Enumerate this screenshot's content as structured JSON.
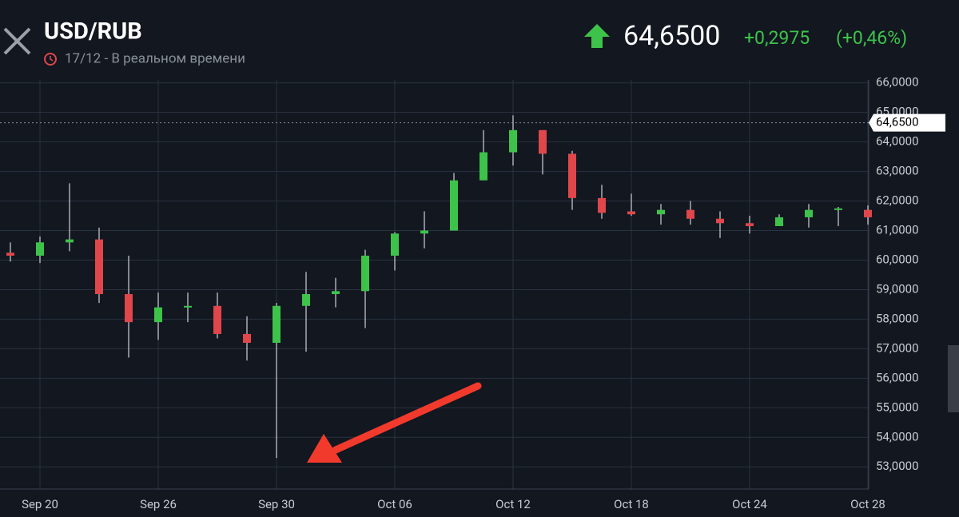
{
  "header": {
    "symbol": "USD/RUB",
    "subtitle": "17/12 - В реальном времени",
    "price": "64,6500",
    "change": "+0,2975",
    "change_percent": "(+0,46%)"
  },
  "chart_data": {
    "type": "candlestick",
    "categories": [
      null,
      "Sep 20",
      null,
      null,
      null,
      "Sep 26",
      null,
      null,
      null,
      "Sep 30",
      null,
      null,
      null,
      "Oct 06",
      null,
      null,
      null,
      "Oct 12",
      null,
      null,
      null,
      "Oct 18",
      null,
      null,
      null,
      "Oct 24",
      null,
      null,
      null,
      "Oct 28"
    ],
    "open": [
      60.25,
      60.15,
      60.6,
      60.7,
      58.85,
      57.9,
      58.4,
      58.45,
      57.5,
      57.2,
      58.45,
      58.85,
      58.95,
      60.15,
      60.9,
      61.0,
      62.7,
      63.65,
      64.4,
      63.6,
      62.1,
      61.65,
      61.55,
      61.7,
      61.4,
      61.25,
      61.15,
      61.45,
      61.7,
      61.7
    ],
    "high": [
      60.6,
      60.8,
      62.6,
      61.1,
      60.15,
      58.9,
      58.9,
      58.9,
      58.1,
      58.55,
      59.6,
      59.4,
      60.35,
      60.95,
      61.65,
      62.95,
      64.4,
      64.9,
      64.4,
      63.7,
      62.55,
      62.25,
      61.9,
      62.0,
      61.65,
      61.5,
      61.55,
      61.9,
      61.8,
      61.85
    ],
    "low": [
      59.95,
      59.9,
      60.3,
      58.55,
      56.7,
      57.3,
      57.9,
      57.35,
      56.6,
      53.3,
      56.9,
      58.4,
      57.7,
      59.65,
      60.4,
      61.0,
      62.7,
      63.2,
      62.9,
      61.7,
      61.4,
      61.5,
      61.2,
      61.2,
      60.75,
      60.9,
      61.15,
      61.1,
      61.15,
      61.2
    ],
    "close": [
      60.15,
      60.6,
      60.7,
      58.85,
      57.9,
      58.4,
      58.45,
      57.5,
      57.2,
      58.45,
      58.85,
      58.95,
      60.15,
      60.9,
      61.0,
      62.7,
      63.65,
      64.4,
      63.6,
      62.1,
      61.6,
      61.55,
      61.7,
      61.4,
      61.25,
      61.15,
      61.45,
      61.7,
      61.75,
      61.45
    ],
    "up_color": "#3dc34a",
    "down_color": "#e0464a",
    "ylim": [
      52.25,
      66.1
    ],
    "yticks": [
      {
        "value": 53,
        "label": "53,0000"
      },
      {
        "value": 54,
        "label": "54,0000"
      },
      {
        "value": 55,
        "label": "55,0000"
      },
      {
        "value": 56,
        "label": "56,0000"
      },
      {
        "value": 57,
        "label": "57,0000"
      },
      {
        "value": 58,
        "label": "58,0000"
      },
      {
        "value": 59,
        "label": "59,0000"
      },
      {
        "value": 60,
        "label": "60,0000"
      },
      {
        "value": 61,
        "label": "61,0000"
      },
      {
        "value": 62,
        "label": "62,0000"
      },
      {
        "value": 63,
        "label": "63,0000"
      },
      {
        "value": 64,
        "label": "64,0000"
      },
      {
        "value": 65,
        "label": "65,0000"
      },
      {
        "value": 66,
        "label": "66,0000"
      }
    ],
    "last_price": {
      "value": 64.65,
      "label": "64,6500"
    },
    "grid": true
  }
}
